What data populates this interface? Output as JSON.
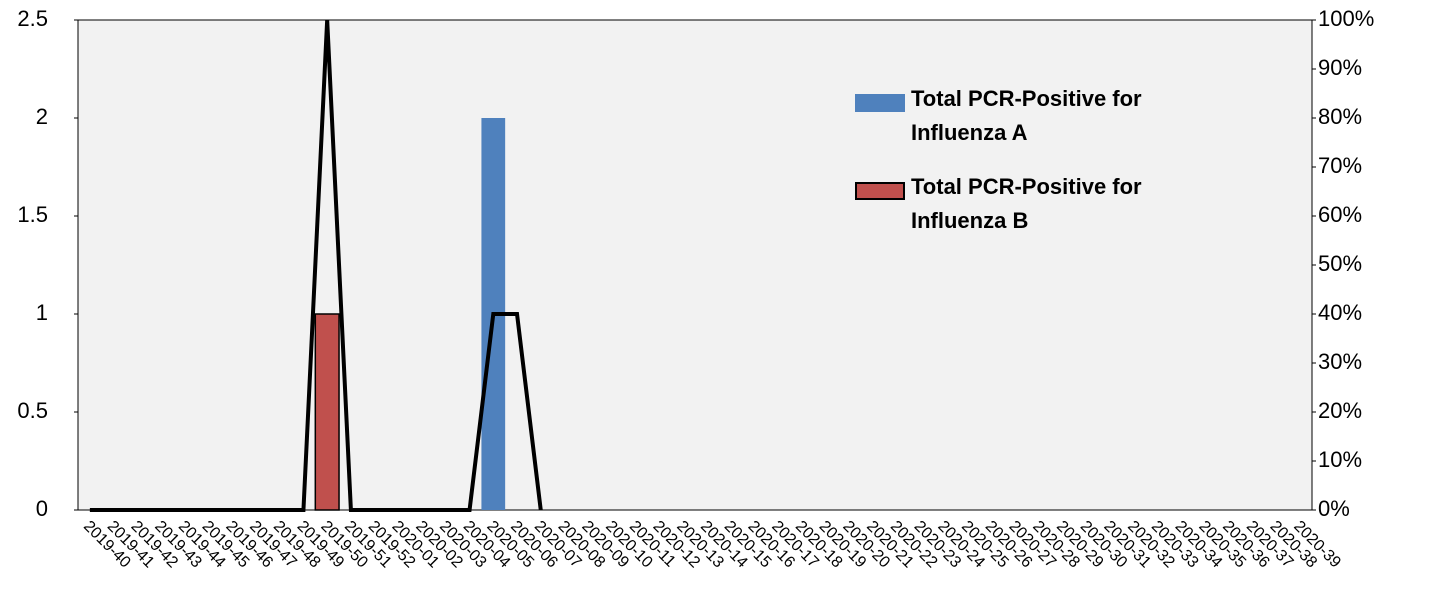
{
  "chart_data": {
    "type": "bar-line",
    "categories": [
      "2019-40",
      "2019-41",
      "2019-42",
      "2019-43",
      "2019-44",
      "2019-45",
      "2019-46",
      "2019-47",
      "2019-48",
      "2019-49",
      "2019-50",
      "2019-51",
      "2019-52",
      "2020-01",
      "2020-02",
      "2020-03",
      "2020-04",
      "2020-05",
      "2020-06",
      "2020-07",
      "2020-08",
      "2020-09",
      "2020-10",
      "2020-11",
      "2020-12",
      "2020-13",
      "2020-14",
      "2020-15",
      "2020-16",
      "2020-17",
      "2020-18",
      "2020-19",
      "2020-20",
      "2020-21",
      "2020-22",
      "2020-23",
      "2020-24",
      "2020-25",
      "2020-26",
      "2020-27",
      "2020-28",
      "2020-29",
      "2020-30",
      "2020-31",
      "2020-32",
      "2020-33",
      "2020-34",
      "2020-35",
      "2020-36",
      "2020-37",
      "2020-38",
      "2020-39"
    ],
    "series": [
      {
        "name": "Total PCR-Positive for Influenza A",
        "type": "bar",
        "color": "#4f81bd",
        "values": [
          0,
          0,
          0,
          0,
          0,
          0,
          0,
          0,
          0,
          0,
          0,
          0,
          0,
          0,
          0,
          0,
          0,
          2,
          0,
          0,
          0,
          0,
          0,
          0,
          0,
          0,
          0,
          0,
          0,
          0,
          0,
          0,
          0,
          0,
          0,
          0,
          0,
          0,
          0,
          0,
          0,
          0,
          0,
          0,
          0,
          0,
          0,
          0,
          0,
          0,
          0,
          0
        ]
      },
      {
        "name": "Total PCR-Positive for Influenza B",
        "type": "bar",
        "color": "#c0504d",
        "values": [
          0,
          0,
          0,
          0,
          0,
          0,
          0,
          0,
          0,
          0,
          1,
          0,
          0,
          0,
          0,
          0,
          0,
          0,
          0,
          0,
          0,
          0,
          0,
          0,
          0,
          0,
          0,
          0,
          0,
          0,
          0,
          0,
          0,
          0,
          0,
          0,
          0,
          0,
          0,
          0,
          0,
          0,
          0,
          0,
          0,
          0,
          0,
          0,
          0,
          0,
          0,
          0
        ]
      },
      {
        "type": "line",
        "axis": "y2",
        "color": "#000000",
        "values": [
          0,
          0,
          0,
          0,
          0,
          0,
          0,
          0,
          0,
          0,
          100,
          0,
          0,
          0,
          0,
          0,
          0,
          40,
          40,
          0,
          null,
          null,
          null,
          null,
          null,
          null,
          null,
          null,
          null,
          null,
          null,
          null,
          null,
          null,
          null,
          null,
          null,
          null,
          null,
          null,
          null,
          null,
          null,
          null,
          null,
          null,
          null,
          null,
          null,
          null,
          null,
          null
        ]
      }
    ],
    "ylim": [
      0,
      2.5
    ],
    "yticks": [
      0,
      0.5,
      1,
      1.5,
      2,
      2.5
    ],
    "y2lim": [
      0,
      100
    ],
    "y2ticks": [
      {
        "value": 0,
        "label": "0%"
      },
      {
        "value": 10,
        "label": "10%"
      },
      {
        "value": 20,
        "label": "20%"
      },
      {
        "value": 30,
        "label": "30%"
      },
      {
        "value": 40,
        "label": "40%"
      },
      {
        "value": 50,
        "label": "50%"
      },
      {
        "value": 60,
        "label": "60%"
      },
      {
        "value": 70,
        "label": "70%"
      },
      {
        "value": 80,
        "label": "80%"
      },
      {
        "value": 90,
        "label": "90%"
      },
      {
        "value": 100,
        "label": "100%"
      }
    ],
    "legend": "upper right"
  }
}
